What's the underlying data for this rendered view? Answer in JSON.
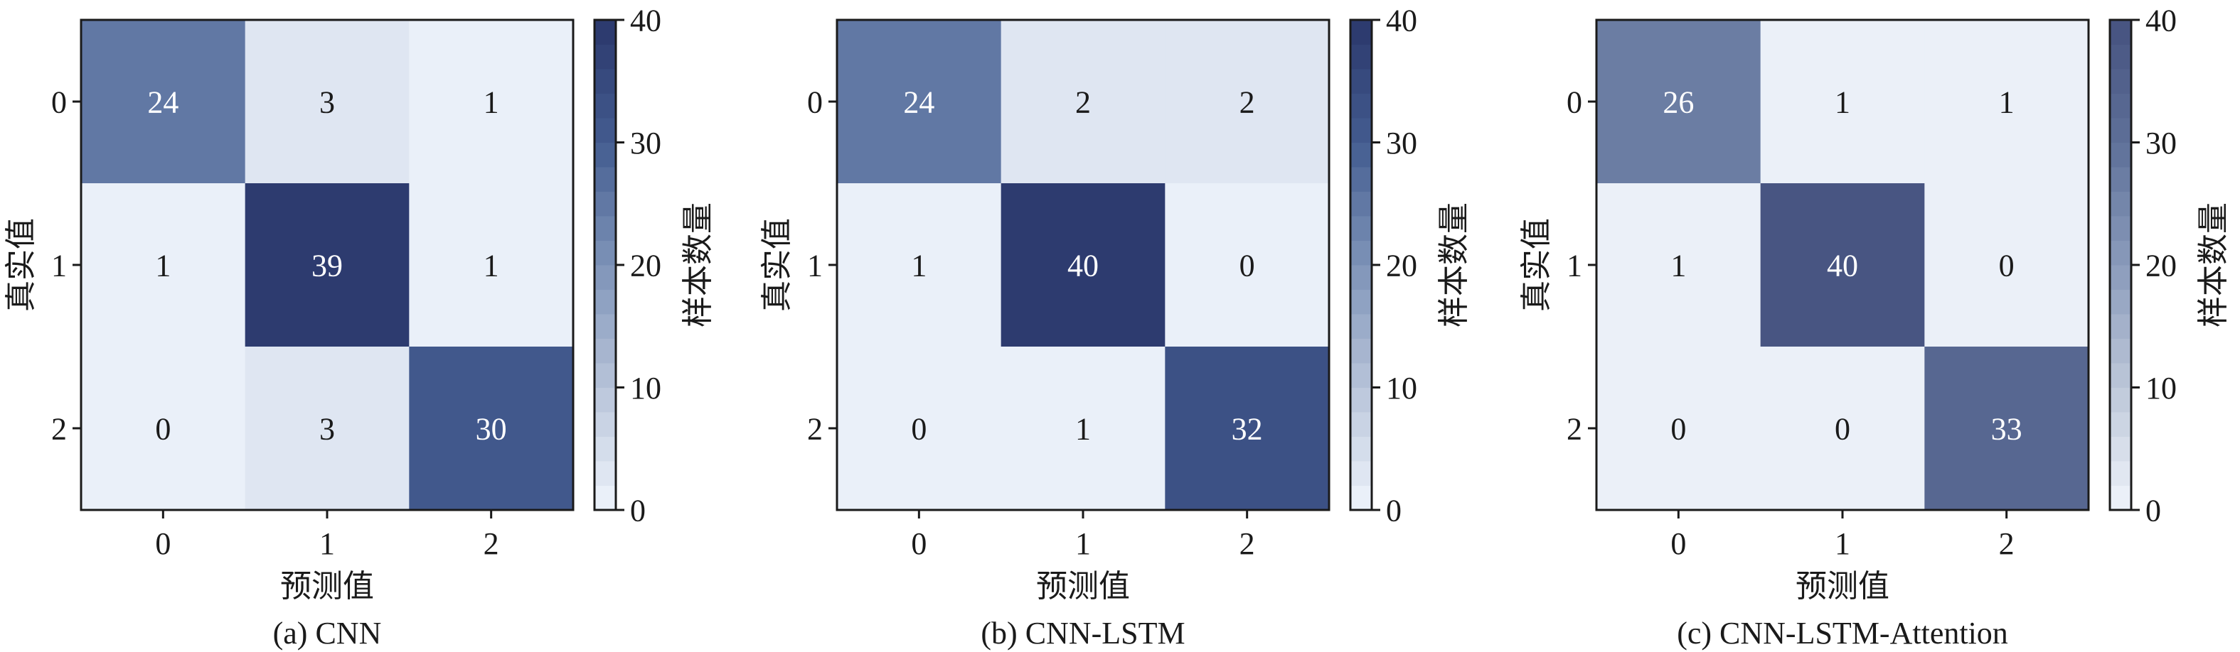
{
  "chart_data": [
    {
      "type": "heatmap",
      "caption": "(a) CNN",
      "xlabel": "预测值",
      "ylabel": "真实值",
      "colorbar_label": "样本数量",
      "x_categories": [
        "0",
        "1",
        "2"
      ],
      "y_categories": [
        "0",
        "1",
        "2"
      ],
      "values": [
        [
          24,
          3,
          1
        ],
        [
          1,
          39,
          1
        ],
        [
          0,
          3,
          30
        ]
      ],
      "colorbar_range": [
        0,
        40
      ],
      "colorbar_ticks": [
        "0",
        "10",
        "20",
        "30",
        "40"
      ],
      "colormap": [
        "#f0f5fc",
        "#b8c4d9",
        "#7e93b8",
        "#435c90",
        "#2b376b"
      ]
    },
    {
      "type": "heatmap",
      "caption": "(b) CNN-LSTM",
      "xlabel": "预测值",
      "ylabel": "真实值",
      "colorbar_label": "样本数量",
      "x_categories": [
        "0",
        "1",
        "2"
      ],
      "y_categories": [
        "0",
        "1",
        "2"
      ],
      "values": [
        [
          24,
          2,
          2
        ],
        [
          1,
          40,
          0
        ],
        [
          0,
          1,
          32
        ]
      ],
      "colorbar_range": [
        0,
        40
      ],
      "colorbar_ticks": [
        "0",
        "10",
        "20",
        "30",
        "40"
      ],
      "colormap": [
        "#f0f5fc",
        "#b8c4d9",
        "#7e93b8",
        "#435c90",
        "#2b376b"
      ]
    },
    {
      "type": "heatmap",
      "caption": "(c) CNN-LSTM-Attention",
      "xlabel": "预测值",
      "ylabel": "真实值",
      "colorbar_label": "样本数量",
      "x_categories": [
        "0",
        "1",
        "2"
      ],
      "y_categories": [
        "0",
        "1",
        "2"
      ],
      "values": [
        [
          26,
          1,
          1
        ],
        [
          1,
          40,
          0
        ],
        [
          0,
          0,
          33
        ]
      ],
      "colorbar_range": [
        0,
        40
      ],
      "colorbar_ticks": [
        "0",
        "10",
        "20",
        "30",
        "40"
      ],
      "colormap": [
        "#f0f5fb",
        "#bdc7d9",
        "#8a9bbb",
        "#5e7098",
        "#465280"
      ]
    }
  ]
}
